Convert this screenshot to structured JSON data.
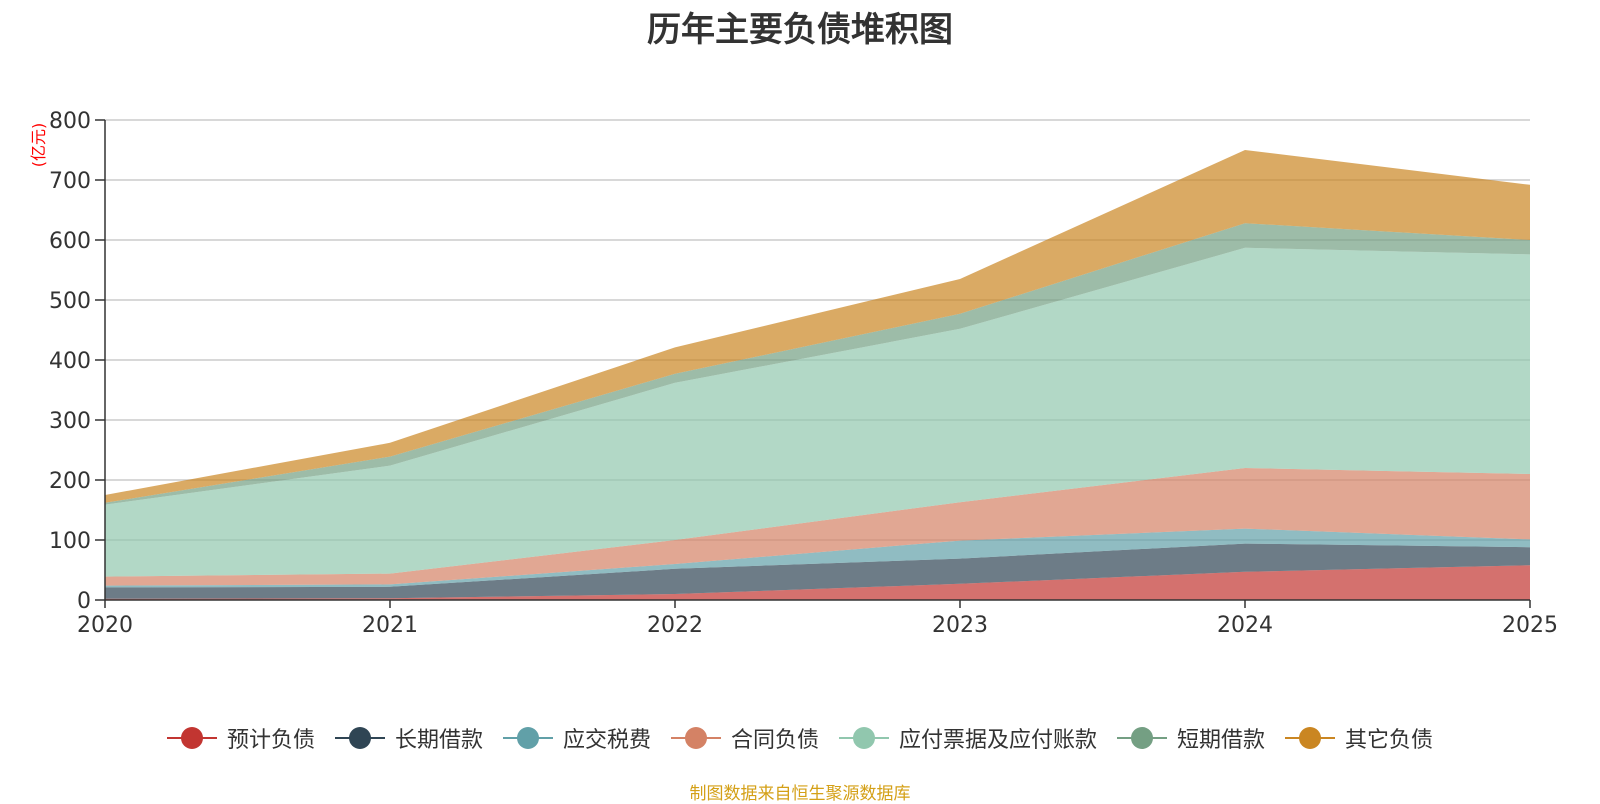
{
  "chart_data": {
    "type": "area",
    "stacked": true,
    "title": "历年主要负债堆积图",
    "ylabel": "(亿元)",
    "xlabel": "",
    "categories": [
      "2020",
      "2021",
      "2022",
      "2023",
      "2024",
      "2025"
    ],
    "ylim": [
      0,
      800
    ],
    "yticks": [
      0,
      100,
      200,
      300,
      400,
      500,
      600,
      700,
      800
    ],
    "grid": true,
    "legend_position": "bottom",
    "series": [
      {
        "name": "预计负债",
        "color": "#c23531",
        "values": [
          2,
          3,
          10,
          27,
          47,
          58
        ]
      },
      {
        "name": "长期借款",
        "color": "#2f4554",
        "values": [
          19,
          19,
          42,
          42,
          47,
          30
        ]
      },
      {
        "name": "应交税费",
        "color": "#61a0a8",
        "values": [
          3,
          4,
          8,
          30,
          25,
          13
        ]
      },
      {
        "name": "合同负债",
        "color": "#d48265",
        "values": [
          15,
          18,
          40,
          64,
          101,
          109
        ]
      },
      {
        "name": "应付票据及应付账款",
        "color": "#91c7ae",
        "values": [
          120,
          180,
          262,
          289,
          367,
          366
        ]
      },
      {
        "name": "短期借款",
        "color": "#749f83",
        "values": [
          3,
          15,
          15,
          25,
          41,
          24
        ]
      },
      {
        "name": "其它负债",
        "color": "#ca8622",
        "values": [
          13,
          23,
          44,
          58,
          122,
          92
        ]
      }
    ]
  },
  "footer": {
    "source": "制图数据来自恒生聚源数据库"
  }
}
